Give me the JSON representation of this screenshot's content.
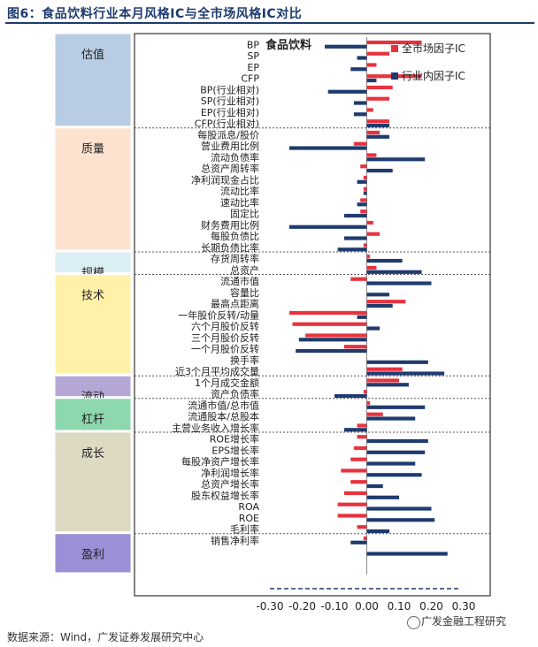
{
  "header": {
    "figure_title": "图6：食品饮料行业本月风格IC与全市场风格IC对比"
  },
  "footer": {
    "source": "数据来源：Wind，广发证券发展研究中心",
    "watermark": "广发金融工程研究"
  },
  "colors": {
    "market": "#e8323e",
    "industry": "#1f3b6e",
    "grid": "#555555"
  },
  "chart_data": {
    "type": "bar",
    "orientation": "horizontal",
    "title": "食品饮料",
    "xlim": [
      -0.3,
      0.3
    ],
    "xticks": [
      -0.3,
      -0.2,
      -0.1,
      0.0,
      0.1,
      0.2,
      0.3
    ],
    "xtick_labels": [
      "-0.30",
      "-0.20",
      "-0.10",
      "0.00",
      "0.10",
      "0.20",
      "0.30"
    ],
    "legend": {
      "position": "top-right",
      "entries": [
        "全市场因子IC",
        "行业内因子IC"
      ]
    },
    "groups": [
      {
        "name": "估值",
        "color": "#b8cce4",
        "count": 8
      },
      {
        "name": "质量",
        "color": "#fde3cf",
        "count": 11
      },
      {
        "name": "规模",
        "color": "#dbeef4",
        "count": 2
      },
      {
        "name": "技术",
        "color": "#fff2a8",
        "count": 9
      },
      {
        "name": "流动",
        "color": "#b4a7d6",
        "count": 2
      },
      {
        "name": "杠杆",
        "color": "#8ed8ae",
        "count": 3
      },
      {
        "name": "成长",
        "color": "#ddd9c3",
        "count": 9
      },
      {
        "name": "盈利",
        "color": "#9b8fd6",
        "count": 6
      }
    ],
    "categories": [
      "BP",
      "SP",
      "EP",
      "CFP",
      "BP(行业相对)",
      "SP(行业相对)",
      "EP(行业相对)",
      "CFP(行业相对)",
      "每股派息/股价",
      "营业费用比例",
      "流动负债率",
      "总资产周转率",
      "净利润现金占比",
      "流动比率",
      "速动比率",
      "固定比",
      "财务费用比例",
      "每股负债比",
      "长期负债比率",
      "存货周转率",
      "总资产",
      "流通市值",
      "容量比",
      "最高点距离",
      "一年股价反转/动量",
      "六个月股价反转",
      "三个月股价反转",
      "一个月股价反转",
      "换手率",
      "近3个月平均成交量",
      "1个月成交金额",
      "资产负债率",
      "流通市值/总市值",
      "流通股本/总股本",
      "主营业务收入增长率",
      "ROE增长率",
      "EPS增长率",
      "每股净资产增长率",
      "净利润增长率",
      "总资产增长率",
      "股东权益增长率",
      "ROA",
      "ROE",
      "毛利率",
      "销售净利率",
      "",
      "",
      "",
      "",
      ""
    ],
    "series": [
      {
        "name": "全市场因子IC",
        "values": [
          0.17,
          0.07,
          0.03,
          0.17,
          0.08,
          0.07,
          0.02,
          0.07,
          0.04,
          -0.04,
          0.03,
          -0.02,
          -0.01,
          -0.01,
          -0.02,
          -0.02,
          0.02,
          0.04,
          -0.01,
          0.01,
          0.03,
          -0.05,
          0.0,
          0.12,
          -0.24,
          -0.23,
          -0.19,
          -0.07,
          0.0,
          0.11,
          0.1,
          -0.01,
          0.01,
          0.05,
          -0.03,
          -0.03,
          -0.04,
          -0.05,
          -0.08,
          -0.05,
          -0.07,
          -0.09,
          -0.09,
          -0.03,
          -0.01,
          0.0,
          0.0,
          0.0,
          0.0,
          0.0
        ]
      },
      {
        "name": "行业内因子IC",
        "values": [
          -0.13,
          -0.03,
          -0.05,
          0.03,
          -0.12,
          -0.04,
          -0.04,
          0.07,
          0.07,
          -0.24,
          0.18,
          0.08,
          -0.03,
          -0.01,
          -0.03,
          -0.07,
          -0.24,
          -0.07,
          -0.09,
          0.11,
          0.17,
          0.2,
          0.07,
          0.08,
          -0.03,
          0.04,
          -0.21,
          -0.22,
          0.19,
          0.24,
          0.13,
          -0.1,
          0.18,
          0.15,
          -0.07,
          0.19,
          0.18,
          0.15,
          0.17,
          0.05,
          0.1,
          0.2,
          0.21,
          0.07,
          -0.05,
          0.25,
          0.0,
          0.0,
          0.0,
          0.0
        ]
      }
    ]
  }
}
